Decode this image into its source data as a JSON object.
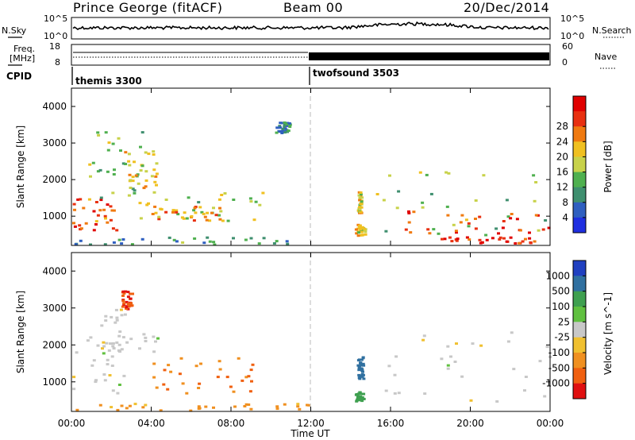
{
  "header": {
    "title": "Prince George (fitACF)",
    "beam": "Beam 00",
    "date": "20/Dec/2014"
  },
  "noise_panel": {
    "left_label": "N.Sky",
    "right_label": "N.Search",
    "left_ticks": [
      "10^5",
      "10^0"
    ],
    "right_ticks": [
      "10^5",
      "10^0"
    ]
  },
  "freq_panel": {
    "left_label_1": "Freq.",
    "left_label_2": "[MHz]",
    "right_label": "Nave",
    "left_ticks": [
      "18",
      "8"
    ],
    "right_ticks": [
      "60",
      "0"
    ]
  },
  "cpid": {
    "label": "CPID",
    "programs": [
      {
        "name": "themis 3300",
        "start_hour": 0
      },
      {
        "name": "twofsound 3503",
        "start_hour": 12
      }
    ]
  },
  "chart_data": [
    {
      "type": "heatmap",
      "id": "power",
      "ylabel": "Slant Range [km]",
      "xlabel": "Time UT",
      "xlim": [
        0,
        24
      ],
      "ylim": [
        200,
        4500
      ],
      "y_ticks": [
        "1000",
        "2000",
        "3000",
        "4000"
      ],
      "y_tick_values": [
        1000,
        2000,
        3000,
        4000
      ],
      "x_ticks": [
        "00:00",
        "04:00",
        "08:00",
        "12:00",
        "16:00",
        "20:00",
        "00:00"
      ],
      "x_tick_values": [
        0,
        4,
        8,
        12,
        16,
        20,
        24
      ],
      "colorbar": {
        "label": "Power [dB]",
        "ticks": [
          "4",
          "8",
          "12",
          "16",
          "20",
          "24",
          "28"
        ],
        "colors": [
          "#1f2fe0",
          "#2f5fc0",
          "#3f8f6f",
          "#4fb04f",
          "#c8d24a",
          "#f0c020",
          "#f07a10",
          "#e83010",
          "#e00000"
        ]
      },
      "regions": [
        {
          "t0": 0.0,
          "t1": 2.4,
          "r0": 600,
          "r1": 1500,
          "dB": 26
        },
        {
          "t0": 0.6,
          "t1": 3.6,
          "r0": 1400,
          "r1": 3400,
          "dB": 14
        },
        {
          "t0": 2.6,
          "t1": 4.4,
          "r0": 1800,
          "r1": 2900,
          "dB": 18
        },
        {
          "t0": 3.0,
          "t1": 9.6,
          "r0": 700,
          "r1": 1700,
          "dB": 15
        },
        {
          "t0": 4.0,
          "t1": 8.0,
          "r0": 900,
          "r1": 1300,
          "dB": 22
        },
        {
          "t0": 0.0,
          "t1": 12.0,
          "r0": 250,
          "r1": 450,
          "dB": 10
        },
        {
          "t0": 10.2,
          "t1": 10.9,
          "r0": 3300,
          "r1": 3600,
          "dB": 8
        },
        {
          "t0": 14.2,
          "t1": 14.7,
          "r0": 500,
          "r1": 800,
          "dB": 18
        },
        {
          "t0": 14.3,
          "t1": 14.5,
          "r0": 1100,
          "r1": 1700,
          "dB": 18
        },
        {
          "t0": 15.2,
          "t1": 24.0,
          "r0": 500,
          "r1": 2300,
          "dB": 14
        },
        {
          "t0": 16.6,
          "t1": 24.0,
          "r0": 550,
          "r1": 1200,
          "dB": 27
        },
        {
          "t0": 18.5,
          "t1": 23.2,
          "r0": 280,
          "r1": 450,
          "dB": 28
        }
      ]
    },
    {
      "type": "heatmap",
      "id": "velocity",
      "ylabel": "Slant Range [km]",
      "xlabel": "Time UT",
      "xlim": [
        0,
        24
      ],
      "ylim": [
        200,
        4500
      ],
      "y_ticks": [
        "1000",
        "2000",
        "3000",
        "4000"
      ],
      "y_tick_values": [
        1000,
        2000,
        3000,
        4000
      ],
      "x_ticks": [
        "00:00",
        "04:00",
        "08:00",
        "12:00",
        "16:00",
        "20:00",
        "00:00"
      ],
      "x_tick_values": [
        0,
        4,
        8,
        12,
        16,
        20,
        24
      ],
      "colorbar": {
        "label": "Velocity [m s^-1]",
        "ticks": [
          "1000",
          "500",
          "100",
          "25",
          "-25",
          "-100",
          "-500",
          "-1000"
        ],
        "colors": [
          "#2040c0",
          "#3070a0",
          "#3fa050",
          "#60c040",
          "#c8c8c8",
          "#f0c030",
          "#f09020",
          "#f06010",
          "#e01010"
        ]
      },
      "regions": [
        {
          "t0": 0.0,
          "t1": 2.6,
          "r0": 600,
          "r1": 2400,
          "v": 0
        },
        {
          "t0": 1.2,
          "t1": 4.4,
          "r0": 1800,
          "r1": 3000,
          "v": 0
        },
        {
          "t0": 4.0,
          "t1": 9.2,
          "r0": 700,
          "r1": 1700,
          "v": -300
        },
        {
          "t0": 2.5,
          "t1": 3.0,
          "r0": 3000,
          "r1": 3500,
          "v": -800
        },
        {
          "t0": 0.0,
          "t1": 12.0,
          "r0": 250,
          "r1": 450,
          "v": -80
        },
        {
          "t0": 14.2,
          "t1": 14.6,
          "r0": 500,
          "r1": 750,
          "v": 100
        },
        {
          "t0": 14.3,
          "t1": 14.6,
          "r0": 1100,
          "r1": 1700,
          "v": 500
        },
        {
          "t0": 15.4,
          "t1": 24.0,
          "r0": 500,
          "r1": 2400,
          "v": 0
        }
      ]
    }
  ]
}
